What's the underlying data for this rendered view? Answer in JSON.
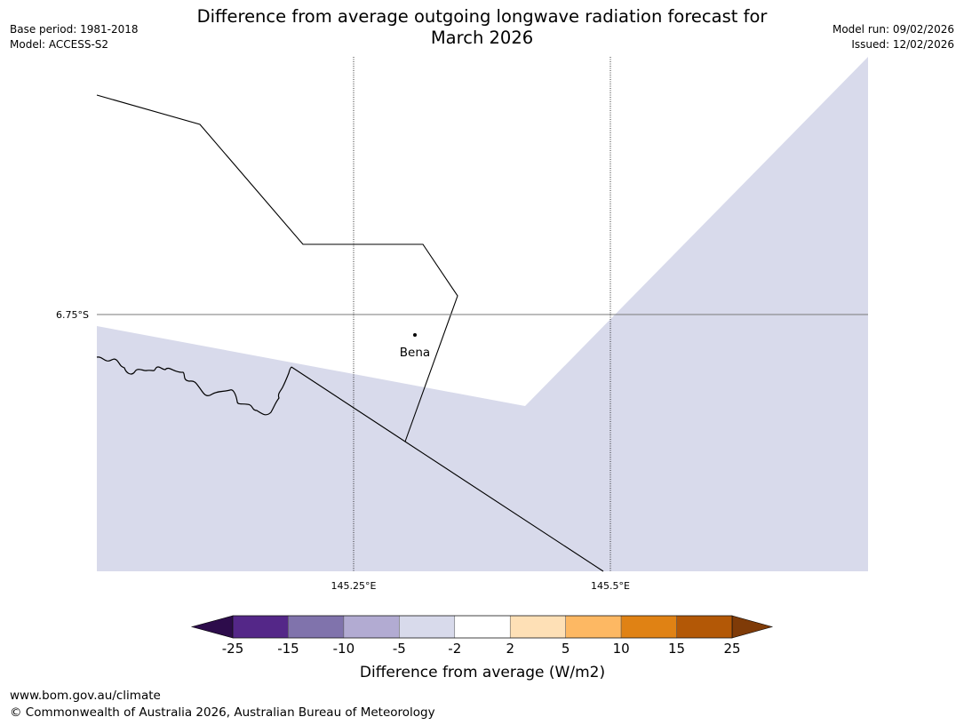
{
  "title_line1": "Difference from average outgoing longwave radiation forecast for",
  "title_line2": "March 2026",
  "base_period": "Base period: 1981-2018",
  "model": "Model: ACCESS-S2",
  "model_run": "Model run: 09/02/2026",
  "issued": "Issued: 12/02/2026",
  "map": {
    "lat_label": "6.75°S",
    "lon_labels": [
      "145.25°E",
      "145.5°E"
    ],
    "place_label": "Bena"
  },
  "colorbar": {
    "title": "Difference from average (W/m2)",
    "tick_labels": [
      "-25",
      "-15",
      "-10",
      "-5",
      "-2",
      "2",
      "5",
      "10",
      "15",
      "25"
    ],
    "colors": {
      "below_min": "#2d0c4b",
      "bins": [
        "#542788",
        "#8073ac",
        "#b2abd2",
        "#d8daeb",
        "#ffffff",
        "#fee0b6",
        "#fdb863",
        "#e08214",
        "#b35806"
      ],
      "above_max": "#7f3b08"
    }
  },
  "footer": {
    "url": "www.bom.gov.au/climate",
    "copyright": "© Commonwealth of Australia 2026, Australian Bureau of Meteorology"
  }
}
